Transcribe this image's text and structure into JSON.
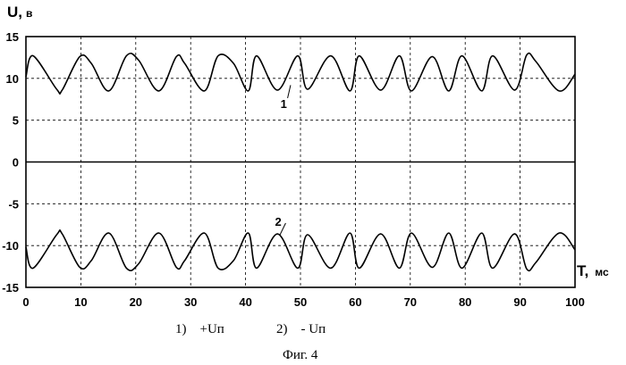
{
  "chart_data": {
    "type": "line",
    "ylabel": {
      "main": "U,",
      "unit": "в"
    },
    "xlabel": {
      "main": "T,",
      "unit": "мс"
    },
    "xlim": [
      0,
      100
    ],
    "ylim": [
      -15,
      15
    ],
    "x_ticks": [
      "0",
      "10",
      "20",
      "30",
      "40",
      "50",
      "60",
      "70",
      "80",
      "90",
      "100"
    ],
    "y_ticks": [
      "15",
      "10",
      "5",
      "0",
      "-5",
      "-10",
      "-15"
    ],
    "grid": true,
    "series": [
      {
        "name": "1",
        "label_anchor": [
          47,
          7
        ],
        "x": [
          0,
          1.3,
          5.6,
          6.6,
          9.8,
          11.9,
          15.1,
          18.3,
          20.5,
          24.2,
          27.4,
          28.9,
          32.5,
          35.0,
          37.8,
          40.5,
          42.0,
          45.8,
          49.5,
          51.3,
          55.5,
          59.0,
          60.7,
          64.6,
          68.0,
          70.2,
          74.0,
          77.0,
          79.4,
          83.0,
          85.0,
          89.0,
          91.2,
          92.9,
          97.1,
          100
        ],
        "y": [
          10.2,
          12.7,
          8.7,
          8.6,
          12.6,
          11.8,
          8.5,
          12.7,
          12.2,
          8.5,
          12.6,
          11.8,
          8.5,
          12.7,
          11.8,
          8.5,
          12.7,
          8.6,
          12.7,
          8.7,
          12.7,
          8.5,
          12.7,
          8.6,
          12.7,
          8.5,
          12.6,
          8.5,
          12.7,
          8.5,
          12.7,
          8.6,
          12.8,
          12.0,
          8.5,
          10.5
        ]
      },
      {
        "name": "0",
        "x": [
          0,
          100
        ],
        "y": [
          0,
          0
        ]
      },
      {
        "name": "2",
        "label_anchor": [
          46,
          -7.1
        ],
        "x": [
          0,
          1.3,
          5.6,
          6.6,
          9.8,
          11.9,
          15.1,
          18.3,
          20.5,
          24.2,
          27.4,
          28.9,
          32.5,
          35.0,
          37.8,
          40.5,
          42.0,
          45.8,
          49.5,
          51.3,
          55.5,
          59.0,
          60.7,
          64.6,
          68.0,
          70.2,
          74.0,
          77.0,
          79.4,
          83.0,
          85.0,
          89.0,
          91.2,
          92.9,
          97.1,
          100
        ],
        "y": [
          -10.2,
          -12.7,
          -8.7,
          -8.6,
          -12.6,
          -11.8,
          -8.5,
          -12.7,
          -12.2,
          -8.5,
          -12.6,
          -11.8,
          -8.5,
          -12.7,
          -11.8,
          -8.5,
          -12.7,
          -8.6,
          -12.7,
          -8.7,
          -12.7,
          -8.5,
          -12.7,
          -8.6,
          -12.7,
          -8.5,
          -12.6,
          -8.5,
          -12.7,
          -8.5,
          -12.7,
          -8.6,
          -12.8,
          -12.0,
          -8.5,
          -10.5
        ]
      }
    ]
  },
  "caption": {
    "legend_1": "1)    +Uп",
    "legend_2": "2)    - Uп",
    "figure": "Фиг. 4"
  }
}
